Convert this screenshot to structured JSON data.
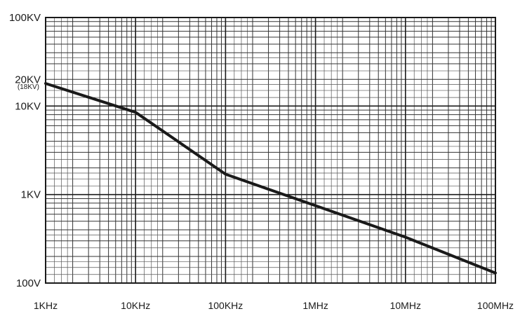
{
  "chart_data": {
    "type": "line",
    "title": "",
    "xlabel": "",
    "ylabel": "",
    "x_scale": "log",
    "y_scale": "log",
    "xlim": [
      1000,
      100000000
    ],
    "ylim": [
      100,
      100000
    ],
    "grid": true,
    "x_ticks": [
      {
        "value": 1000,
        "label": "1KHz"
      },
      {
        "value": 10000,
        "label": "10KHz"
      },
      {
        "value": 100000,
        "label": "100KHz"
      },
      {
        "value": 1000000,
        "label": "1MHz"
      },
      {
        "value": 10000000,
        "label": "10MHz"
      },
      {
        "value": 100000000,
        "label": "100MHz"
      }
    ],
    "y_ticks": [
      {
        "value": 100,
        "label": "100V"
      },
      {
        "value": 1000,
        "label": "1KV"
      },
      {
        "value": 10000,
        "label": "10KV"
      },
      {
        "value": 20000,
        "label": "20KV"
      },
      {
        "value": 100000,
        "label": "100KV"
      }
    ],
    "annotations": [
      {
        "text": "(18KV)",
        "value": 18000
      }
    ],
    "series": [
      {
        "x": [
          1000,
          10000,
          100000,
          1000000,
          10000000,
          100000000
        ],
        "y": [
          18000,
          8500,
          1700,
          750,
          330,
          130
        ]
      }
    ]
  }
}
